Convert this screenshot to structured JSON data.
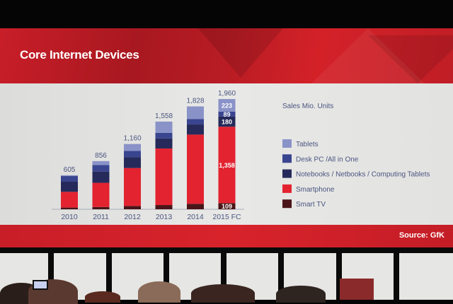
{
  "slide": {
    "title": "Core Internet Devices",
    "units_label": "Sales Mio. Units",
    "source": "Source: GfK"
  },
  "chart_data": {
    "type": "bar",
    "stacked": true,
    "title": "Core Internet Devices",
    "ylabel": "Sales Mio. Units",
    "xlabel": "",
    "categories": [
      "2010",
      "2011",
      "2012",
      "2013",
      "2014",
      "2015 FC"
    ],
    "totals": [
      "605",
      "856",
      "1,160",
      "1,558",
      "1,828",
      "1,960"
    ],
    "total_values": [
      605,
      856,
      1160,
      1558,
      1828,
      1960
    ],
    "ylim": [
      0,
      1960
    ],
    "grid": false,
    "legend_position": "right",
    "series": [
      {
        "name": "Smart TV",
        "color": "#4a1518",
        "values": [
          30,
          40,
          58,
          75,
          97,
          109
        ],
        "labels": [
          "",
          "",
          "",
          "",
          "",
          "109"
        ]
      },
      {
        "name": "Smartphone",
        "color": "#e32330",
        "values": [
          280,
          430,
          675,
          1005,
          1230,
          1358
        ],
        "labels": [
          "",
          "",
          "",
          "",
          "",
          "1,358"
        ]
      },
      {
        "name": "Notebooks / Netbooks / Computing Tablets",
        "color": "#262a5a",
        "values": [
          180,
          200,
          195,
          180,
          180,
          180
        ],
        "labels": [
          "",
          "",
          "",
          "",
          "",
          "180"
        ]
      },
      {
        "name": "Desk PC /All in One",
        "color": "#3a4590",
        "values": [
          100,
          116,
          110,
          98,
          98,
          89
        ],
        "labels": [
          "",
          "",
          "",
          "",
          "",
          "89"
        ]
      },
      {
        "name": "Tablets",
        "color": "#8a93c8",
        "values": [
          15,
          70,
          122,
          200,
          223,
          223
        ],
        "labels": [
          "",
          "",
          "",
          "",
          "",
          "223"
        ]
      }
    ],
    "legend_order": [
      "Tablets",
      "Desk PC /All in One",
      "Notebooks / Netbooks / Computing Tablets",
      "Smartphone",
      "Smart TV"
    ]
  }
}
